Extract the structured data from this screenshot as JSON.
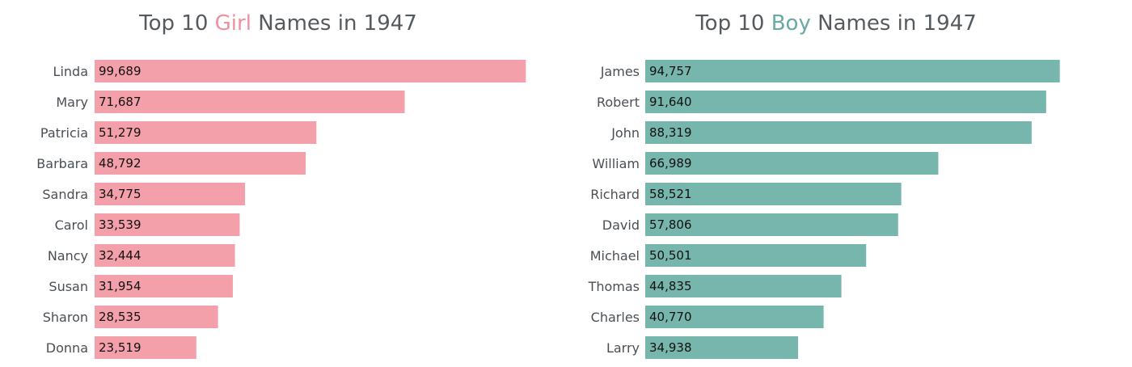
{
  "chart_data": [
    {
      "type": "bar",
      "orientation": "horizontal",
      "title": {
        "prefix": "Top 10 ",
        "highlight": "Girl",
        "suffix": " Names in 1947"
      },
      "categories": [
        "Linda",
        "Mary",
        "Patricia",
        "Barbara",
        "Sandra",
        "Carol",
        "Nancy",
        "Susan",
        "Sharon",
        "Donna"
      ],
      "values": [
        99689,
        71687,
        51279,
        48792,
        34775,
        33539,
        32444,
        31954,
        28535,
        23519
      ],
      "value_labels": [
        "99,689",
        "71,687",
        "51,279",
        "48,792",
        "34,775",
        "33,539",
        "32,444",
        "31,954",
        "28,535",
        "23,519"
      ],
      "bar_color": "#f4a0ab",
      "highlight_color": "#f0909c",
      "xlim": [
        0,
        100000
      ]
    },
    {
      "type": "bar",
      "orientation": "horizontal",
      "title": {
        "prefix": "Top 10 ",
        "highlight": "Boy",
        "suffix": " Names in 1947"
      },
      "categories": [
        "James",
        "Robert",
        "John",
        "William",
        "Richard",
        "David",
        "Michael",
        "Thomas",
        "Charles",
        "Larry"
      ],
      "values": [
        94757,
        91640,
        88319,
        66989,
        58521,
        57806,
        50501,
        44835,
        40770,
        34938
      ],
      "value_labels": [
        "94,757",
        "91,640",
        "88,319",
        "66,989",
        "58,521",
        "57,806",
        "50,501",
        "44,835",
        "40,770",
        "34,938"
      ],
      "bar_color": "#77b6ad",
      "highlight_color": "#6aa9a1",
      "xlim": [
        0,
        95000
      ]
    }
  ]
}
